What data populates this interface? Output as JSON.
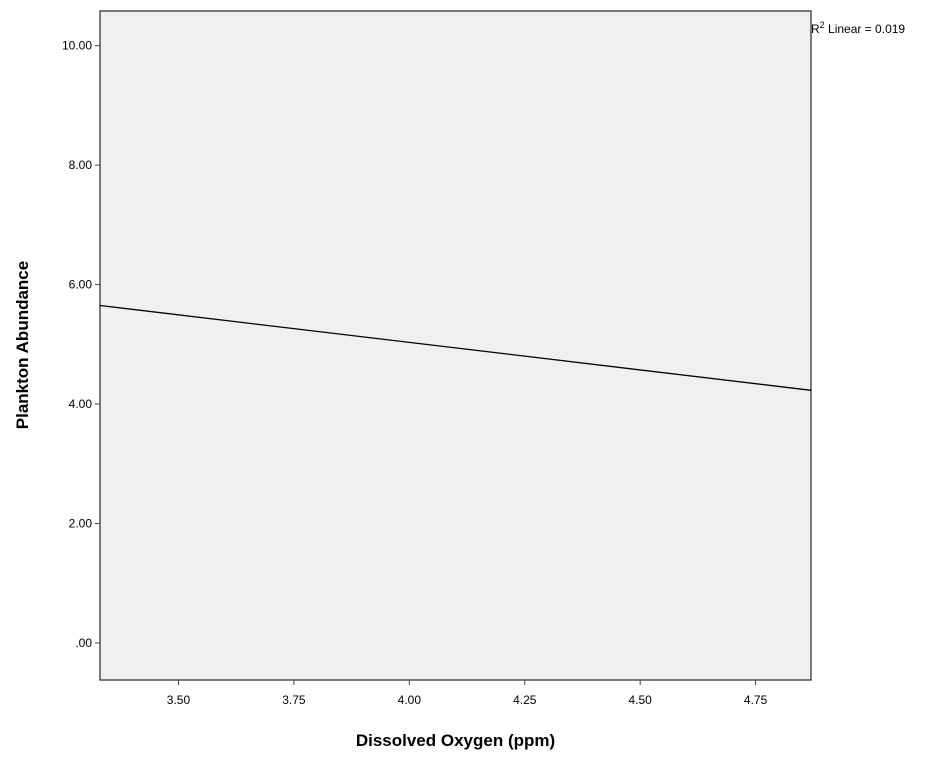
{
  "chart_data": {
    "type": "line",
    "title": "",
    "xlabel": "Dissolved Oxygen (ppm)",
    "ylabel": "Plankton Abundance",
    "xlim": [
      3.33,
      4.87
    ],
    "ylim": [
      -0.62,
      10.58
    ],
    "x_ticks": [
      3.5,
      3.75,
      4.0,
      4.25,
      4.5,
      4.75
    ],
    "x_tick_labels": [
      "3.50",
      "3.75",
      "4.00",
      "4.25",
      "4.50",
      "4.75"
    ],
    "y_ticks": [
      0,
      2,
      4,
      6,
      8,
      10
    ],
    "y_tick_labels": [
      ".00",
      "2.00",
      "4.00",
      "6.00",
      "8.00",
      "10.00"
    ],
    "grid": false,
    "series": [
      {
        "x": [
          3.33,
          4.87
        ],
        "y": [
          5.65,
          4.23
        ],
        "color": "#000000"
      }
    ],
    "annotation": {
      "r2_prefix": "R",
      "r2_superscript": "2",
      "r2_text": " Linear = 0.019"
    },
    "colors": {
      "plot_background": "#f0f0f0",
      "frame": "#444444",
      "line": "#000000"
    }
  }
}
